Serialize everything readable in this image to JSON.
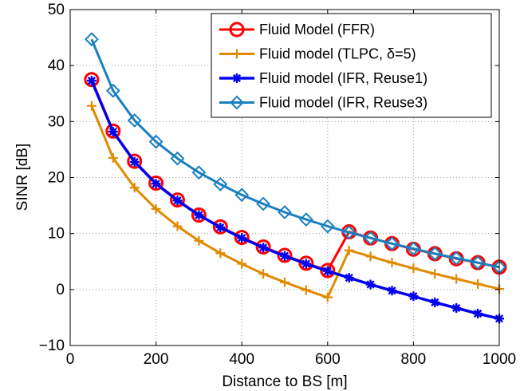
{
  "chart_data": {
    "type": "line",
    "title": "",
    "xlabel": "Distance to BS [m]",
    "ylabel": "SINR [dB]",
    "xlim": [
      0,
      1000
    ],
    "ylim": [
      -10,
      50
    ],
    "xticks": [
      0,
      200,
      400,
      600,
      800,
      1000
    ],
    "yticks": [
      -10,
      0,
      10,
      20,
      30,
      40,
      50
    ],
    "xtick_labels": [
      "0",
      "200",
      "400",
      "600",
      "800",
      "1000"
    ],
    "ytick_labels": [
      "−10",
      "0",
      "10",
      "20",
      "30",
      "40",
      "50"
    ],
    "grid": true,
    "legend_position": "top-right",
    "x": [
      50,
      100,
      150,
      200,
      250,
      300,
      350,
      400,
      450,
      500,
      550,
      600,
      650,
      700,
      750,
      800,
      850,
      900,
      950,
      1000
    ],
    "series": [
      {
        "name": "Fluid Model (FFR)",
        "color": "#ff0000",
        "marker": "circle",
        "values": [
          37.5,
          28.3,
          22.9,
          19.0,
          16.0,
          13.3,
          11.2,
          9.3,
          7.6,
          6.1,
          4.7,
          3.4,
          10.3,
          9.2,
          8.2,
          7.2,
          6.4,
          5.5,
          4.8,
          4.0
        ]
      },
      {
        "name": "Fluid model (TLPC, δ=5)",
        "color": "#e08a00",
        "marker": "plus",
        "values": [
          32.8,
          23.5,
          18.2,
          14.4,
          11.3,
          8.7,
          6.5,
          4.6,
          2.8,
          1.3,
          -0.1,
          -1.4,
          7.0,
          5.9,
          4.8,
          3.8,
          2.8,
          1.9,
          1.0,
          0.1
        ]
      },
      {
        "name": "Fluid model (IFR, Reuse1)",
        "color": "#0000ee",
        "marker": "asterisk",
        "values": [
          37.3,
          28.2,
          22.8,
          18.9,
          15.9,
          13.3,
          11.1,
          9.2,
          7.5,
          6.0,
          4.6,
          3.3,
          2.1,
          0.9,
          -0.2,
          -1.2,
          -2.3,
          -3.3,
          -4.3,
          -5.2
        ]
      },
      {
        "name": "Fluid model (IFR, Reuse3)",
        "color": "#1a7fbf",
        "marker": "diamond",
        "values": [
          44.7,
          35.5,
          30.2,
          26.4,
          23.4,
          20.9,
          18.8,
          16.9,
          15.3,
          13.8,
          12.5,
          11.3,
          10.2,
          9.2,
          8.2,
          7.3,
          6.4,
          5.6,
          4.8,
          4.0
        ]
      }
    ]
  }
}
